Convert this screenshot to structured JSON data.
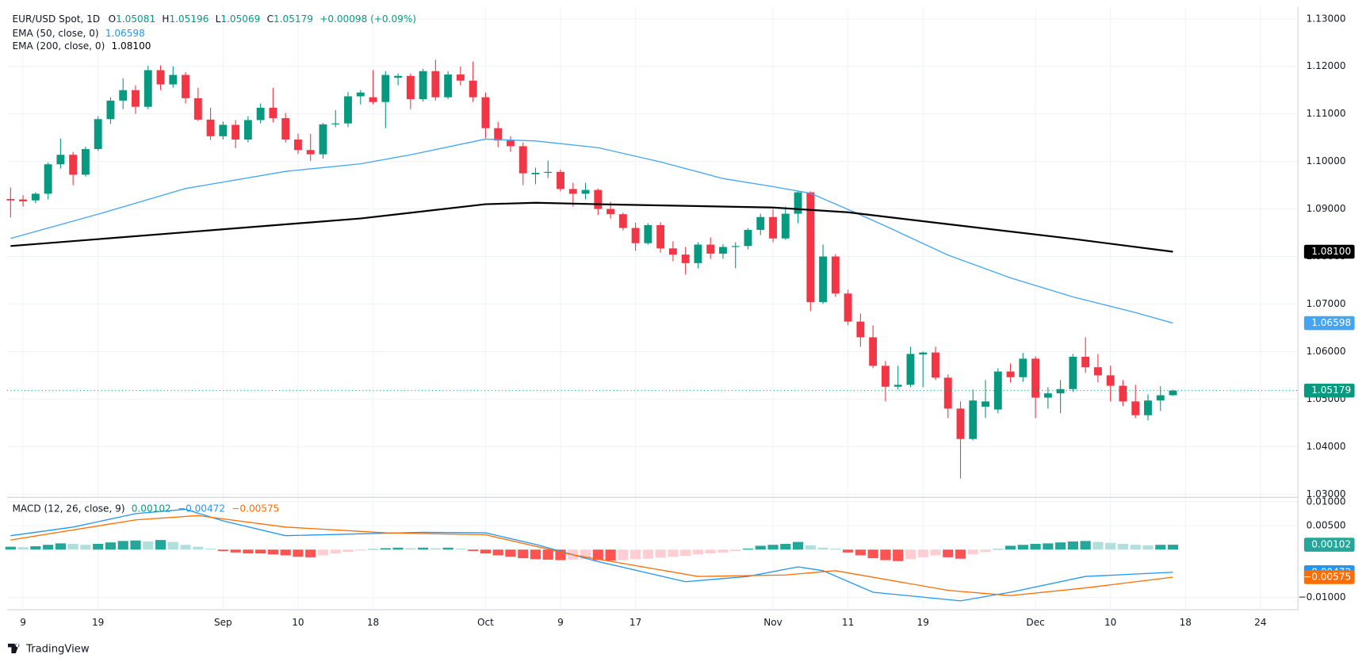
{
  "chart_data": [
    {
      "type": "candlestick",
      "title": "EUR/USD Spot, 1D",
      "ohlc_labels": [
        "O",
        "H",
        "L",
        "C"
      ],
      "change": "+0.00098 (+0.09%)",
      "up_color": "#089981",
      "down_color": "#f23645",
      "ohlc": [
        [
          1.0921,
          1.0945,
          1.0882,
          1.0918
        ],
        [
          1.092,
          1.0929,
          1.0905,
          1.0916
        ],
        [
          1.0918,
          1.0935,
          1.0912,
          1.0932
        ],
        [
          1.0932,
          1.0998,
          1.092,
          1.0994
        ],
        [
          1.0994,
          1.1048,
          1.0985,
          1.1014
        ],
        [
          1.1014,
          1.102,
          1.095,
          1.0972
        ],
        [
          1.0972,
          1.1031,
          1.0968,
          1.1026
        ],
        [
          1.1026,
          1.1095,
          1.1022,
          1.1089
        ],
        [
          1.1089,
          1.1135,
          1.1079,
          1.1128
        ],
        [
          1.1128,
          1.1175,
          1.111,
          1.115
        ],
        [
          1.115,
          1.116,
          1.11,
          1.1115
        ],
        [
          1.1115,
          1.1201,
          1.111,
          1.1192
        ],
        [
          1.1192,
          1.1202,
          1.115,
          1.1162
        ],
        [
          1.1162,
          1.12,
          1.1155,
          1.1182
        ],
        [
          1.1182,
          1.1188,
          1.1122,
          1.1133
        ],
        [
          1.1133,
          1.1155,
          1.1085,
          1.1088
        ],
        [
          1.1088,
          1.1113,
          1.1045,
          1.1053
        ],
        [
          1.1053,
          1.1084,
          1.1046,
          1.1077
        ],
        [
          1.1077,
          1.1087,
          1.1028,
          1.1046
        ],
        [
          1.1046,
          1.1095,
          1.104,
          1.1087
        ],
        [
          1.1087,
          1.1122,
          1.108,
          1.1113
        ],
        [
          1.1113,
          1.1155,
          1.1082,
          1.1091
        ],
        [
          1.1091,
          1.1102,
          1.104,
          1.1046
        ],
        [
          1.1046,
          1.1058,
          1.1016,
          1.1024
        ],
        [
          1.1024,
          1.1058,
          1.1001,
          1.1015
        ],
        [
          1.1015,
          1.1081,
          1.1006,
          1.1078
        ],
        [
          1.1078,
          1.1108,
          1.1072,
          1.108
        ],
        [
          1.108,
          1.1146,
          1.1072,
          1.1137
        ],
        [
          1.1137,
          1.115,
          1.112,
          1.1145
        ],
        [
          1.1135,
          1.1192,
          1.112,
          1.1125
        ],
        [
          1.1125,
          1.119,
          1.107,
          1.1182
        ],
        [
          1.1176,
          1.1185,
          1.116,
          1.118
        ],
        [
          1.118,
          1.1185,
          1.111,
          1.1131
        ],
        [
          1.1131,
          1.1195,
          1.1126,
          1.119
        ],
        [
          1.119,
          1.1214,
          1.1128,
          1.1135
        ],
        [
          1.1135,
          1.119,
          1.1131,
          1.1183
        ],
        [
          1.1183,
          1.12,
          1.116,
          1.117
        ],
        [
          1.117,
          1.121,
          1.1125,
          1.1135
        ],
        [
          1.1135,
          1.1145,
          1.1049,
          1.107
        ],
        [
          1.107,
          1.1083,
          1.103,
          1.1044
        ],
        [
          1.1044,
          1.1053,
          1.102,
          1.1032
        ],
        [
          1.1032,
          1.104,
          1.095,
          1.0975
        ],
        [
          1.0973,
          1.0987,
          1.0952,
          1.0976
        ],
        [
          1.0976,
          1.1002,
          1.0965,
          1.0978
        ],
        [
          1.0978,
          1.0983,
          1.0937,
          1.0942
        ],
        [
          1.0942,
          1.0955,
          1.0905,
          1.0932
        ],
        [
          1.0932,
          1.0955,
          1.092,
          1.094
        ],
        [
          1.094,
          1.0943,
          1.0887,
          1.09
        ],
        [
          1.09,
          1.0915,
          1.088,
          1.0889
        ],
        [
          1.0889,
          1.0892,
          1.0855,
          1.086
        ],
        [
          1.086,
          1.0871,
          1.0812,
          1.0828
        ],
        [
          1.0828,
          1.087,
          1.0825,
          1.0866
        ],
        [
          1.0866,
          1.0872,
          1.0808,
          1.0817
        ],
        [
          1.0817,
          1.0832,
          1.079,
          1.0804
        ],
        [
          1.0804,
          1.082,
          1.0762,
          1.0786
        ],
        [
          1.0786,
          1.083,
          1.0775,
          1.0825
        ],
        [
          1.0825,
          1.084,
          1.0795,
          1.0806
        ],
        [
          1.0806,
          1.0826,
          1.0795,
          1.082
        ],
        [
          1.082,
          1.083,
          1.0775,
          1.0822
        ],
        [
          1.0822,
          1.086,
          1.0815,
          1.0856
        ],
        [
          1.0856,
          1.089,
          1.0845,
          1.0883
        ],
        [
          1.0883,
          1.09,
          1.083,
          1.0838
        ],
        [
          1.0838,
          1.0905,
          1.0835,
          1.089
        ],
        [
          1.089,
          1.0938,
          1.087,
          1.0935
        ],
        [
          1.0935,
          1.0937,
          1.0685,
          1.0704
        ],
        [
          1.0704,
          1.0825,
          1.07,
          1.08
        ],
        [
          1.08,
          1.0805,
          1.0715,
          1.0722
        ],
        [
          1.0722,
          1.073,
          1.0655,
          1.0663
        ],
        [
          1.0663,
          1.068,
          1.061,
          1.063
        ],
        [
          1.063,
          1.0655,
          1.0565,
          1.057
        ],
        [
          1.057,
          1.058,
          1.0495,
          1.0526
        ],
        [
          1.0526,
          1.057,
          1.052,
          1.053
        ],
        [
          1.053,
          1.061,
          1.0525,
          1.0595
        ],
        [
          1.0594,
          1.06,
          1.0525,
          1.0598
        ],
        [
          1.0598,
          1.061,
          1.054,
          1.0545
        ],
        [
          1.0545,
          1.0552,
          1.046,
          1.048
        ],
        [
          1.048,
          1.0495,
          1.0333,
          1.0416
        ],
        [
          1.0416,
          1.052,
          1.0413,
          1.0497
        ],
        [
          1.0484,
          1.054,
          1.046,
          1.0495
        ],
        [
          1.0478,
          1.0565,
          1.047,
          1.0558
        ],
        [
          1.0558,
          1.0575,
          1.0535,
          1.0546
        ],
        [
          1.0546,
          1.0597,
          1.0536,
          1.0585
        ],
        [
          1.0585,
          1.059,
          1.046,
          1.0503
        ],
        [
          1.0503,
          1.0525,
          1.048,
          1.0512
        ],
        [
          1.0512,
          1.054,
          1.047,
          1.0521
        ],
        [
          1.0521,
          1.0595,
          1.0515,
          1.0589
        ],
        [
          1.0589,
          1.063,
          1.0555,
          1.0567
        ],
        [
          1.0567,
          1.0595,
          1.0535,
          1.055
        ],
        [
          1.055,
          1.057,
          1.0495,
          1.0528
        ],
        [
          1.0528,
          1.054,
          1.0485,
          1.0495
        ],
        [
          1.0495,
          1.053,
          1.046,
          1.0466
        ],
        [
          1.0466,
          1.051,
          1.0455,
          1.0497
        ],
        [
          1.0497,
          1.0527,
          1.0475,
          1.0508
        ],
        [
          1.05081,
          1.05196,
          1.05069,
          1.05179
        ]
      ],
      "series": [
        {
          "name": "EMA (50, close, 0)",
          "color": "#42a5f5",
          "x": [
            0,
            7,
            14,
            22,
            28,
            32,
            38,
            42,
            47,
            52,
            57,
            61,
            64,
            67,
            70,
            75,
            80,
            85,
            90,
            93
          ],
          "values": [
            1.0838,
            1.0889,
            1.0943,
            1.0979,
            1.0995,
            1.1014,
            1.1047,
            1.1043,
            1.1029,
            1.0999,
            1.0964,
            1.0947,
            1.0933,
            1.0899,
            1.0864,
            1.0803,
            1.0755,
            1.0715,
            1.0682,
            1.06598
          ]
        },
        {
          "name": "EMA (200, close, 0)",
          "color": "#000000",
          "x": [
            0,
            14,
            28,
            38,
            42,
            47,
            61,
            67,
            75,
            85,
            93
          ],
          "values": [
            1.0822,
            1.0851,
            1.088,
            1.091,
            1.0913,
            1.091,
            1.0903,
            1.0893,
            1.0868,
            1.0837,
            1.081
          ],
          "last_label": "1.08100"
        }
      ],
      "xlim": [
        -0.28,
        103
      ],
      "ylim": [
        1.0295,
        1.1325
      ],
      "yticks": [
        {
          "value": 1.03,
          "label": "1.03000"
        },
        {
          "value": 1.04,
          "label": "1.04000"
        },
        {
          "value": 1.05,
          "label": "1.05000"
        },
        {
          "value": 1.06,
          "label": "1.06000"
        },
        {
          "value": 1.07,
          "label": "1.07000"
        },
        {
          "value": 1.08,
          "label": "1.08000"
        },
        {
          "value": 1.09,
          "label": "1.09000"
        },
        {
          "value": 1.1,
          "label": "1.10000"
        },
        {
          "value": 1.11,
          "label": "1.11000"
        },
        {
          "value": 1.12,
          "label": "1.12000"
        },
        {
          "value": 1.13,
          "label": "1.13000"
        }
      ],
      "grid": true
    },
    {
      "type": "macd",
      "title": "MACD (12, 26, close, 9)",
      "histogram": {
        "colors": {
          "above_rising": "#26a69a",
          "above_falling": "#b2dfdb",
          "below_falling": "#ff5252",
          "below_rising": "#ffcdd2"
        },
        "values": [
          0.0006,
          0.0005,
          0.0007,
          0.001,
          0.0013,
          0.0012,
          0.001,
          0.0012,
          0.0015,
          0.0018,
          0.0019,
          0.0017,
          0.002,
          0.0016,
          0.001,
          0.0006,
          0.0002,
          -0.0003,
          -0.0006,
          -0.0008,
          -0.0008,
          -0.001,
          -0.0012,
          -0.0015,
          -0.0016,
          -0.0012,
          -0.0008,
          -0.0005,
          -0.0002,
          0.0001,
          0.0003,
          0.0004,
          0.0003,
          0.0004,
          0.0003,
          0.0004,
          0.0002,
          -0.0003,
          -0.0008,
          -0.0012,
          -0.0015,
          -0.0018,
          -0.002,
          -0.0021,
          -0.0022,
          -0.0021,
          -0.002,
          -0.0022,
          -0.0023,
          -0.0022,
          -0.002,
          -0.0019,
          -0.0017,
          -0.0015,
          -0.0013,
          -0.001,
          -0.0008,
          -0.0006,
          -0.0003,
          0.0002,
          0.0008,
          0.001,
          0.0012,
          0.0016,
          0.0009,
          0.0004,
          0.0002,
          -0.0006,
          -0.0012,
          -0.0018,
          -0.0022,
          -0.0024,
          -0.002,
          -0.0016,
          -0.0012,
          -0.0016,
          -0.0019,
          -0.001,
          -0.0005,
          0.0001,
          0.0008,
          0.001,
          0.0012,
          0.0013,
          0.0015,
          0.0017,
          0.0018,
          0.0016,
          0.0014,
          0.0012,
          0.001,
          0.0009,
          0.001,
          0.00102
        ]
      },
      "series": [
        {
          "name": "MACD",
          "color": "#2196f3",
          "x": [
            0,
            5,
            10,
            14,
            17,
            22,
            28,
            33,
            38,
            42,
            47,
            54,
            59,
            63,
            65,
            69,
            76,
            80,
            86,
            93
          ],
          "values": [
            0.0029,
            0.0047,
            0.0075,
            0.0084,
            0.006,
            0.0029,
            0.0033,
            0.0036,
            0.0035,
            0.0011,
            -0.0025,
            -0.0067,
            -0.0056,
            -0.0036,
            -0.0044,
            -0.0089,
            -0.0107,
            -0.0089,
            -0.0056,
            -0.00472
          ],
          "last_label": "−0.00472"
        },
        {
          "name": "Signal",
          "color": "#ff6d00",
          "x": [
            0,
            10,
            15,
            22,
            30,
            38,
            45,
            55,
            62,
            66,
            75,
            80,
            86,
            93
          ],
          "values": [
            0.002,
            0.0062,
            0.0071,
            0.0047,
            0.0035,
            0.0031,
            -0.0011,
            -0.0056,
            -0.0053,
            -0.0044,
            -0.0085,
            -0.0096,
            -0.008,
            -0.00575
          ],
          "last_label": "−0.00575"
        }
      ],
      "xlim": [
        -0.28,
        103
      ],
      "ylim": [
        -0.01255,
        0.0109
      ],
      "yticks": [
        {
          "value": -0.01,
          "label": "−0.01000"
        },
        {
          "value": 0.005,
          "label": "0.00500"
        },
        {
          "value": 0.01,
          "label": "0.01000"
        }
      ],
      "xticks": [
        {
          "value": 1,
          "label": "9"
        },
        {
          "value": 7,
          "label": "19"
        },
        {
          "value": 17,
          "label": "Sep"
        },
        {
          "value": 23,
          "label": "10"
        },
        {
          "value": 29,
          "label": "18"
        },
        {
          "value": 38,
          "label": "Oct"
        },
        {
          "value": 44,
          "label": "9"
        },
        {
          "value": 50,
          "label": "17"
        },
        {
          "value": 61,
          "label": "Nov"
        },
        {
          "value": 67,
          "label": "11"
        },
        {
          "value": 73,
          "label": "19"
        },
        {
          "value": 82,
          "label": "Dec"
        },
        {
          "value": 88,
          "label": "10"
        },
        {
          "value": 94,
          "label": "18"
        },
        {
          "value": 100,
          "label": "24"
        }
      ],
      "grid": true
    }
  ],
  "footer": {
    "brand": "TradingView"
  }
}
